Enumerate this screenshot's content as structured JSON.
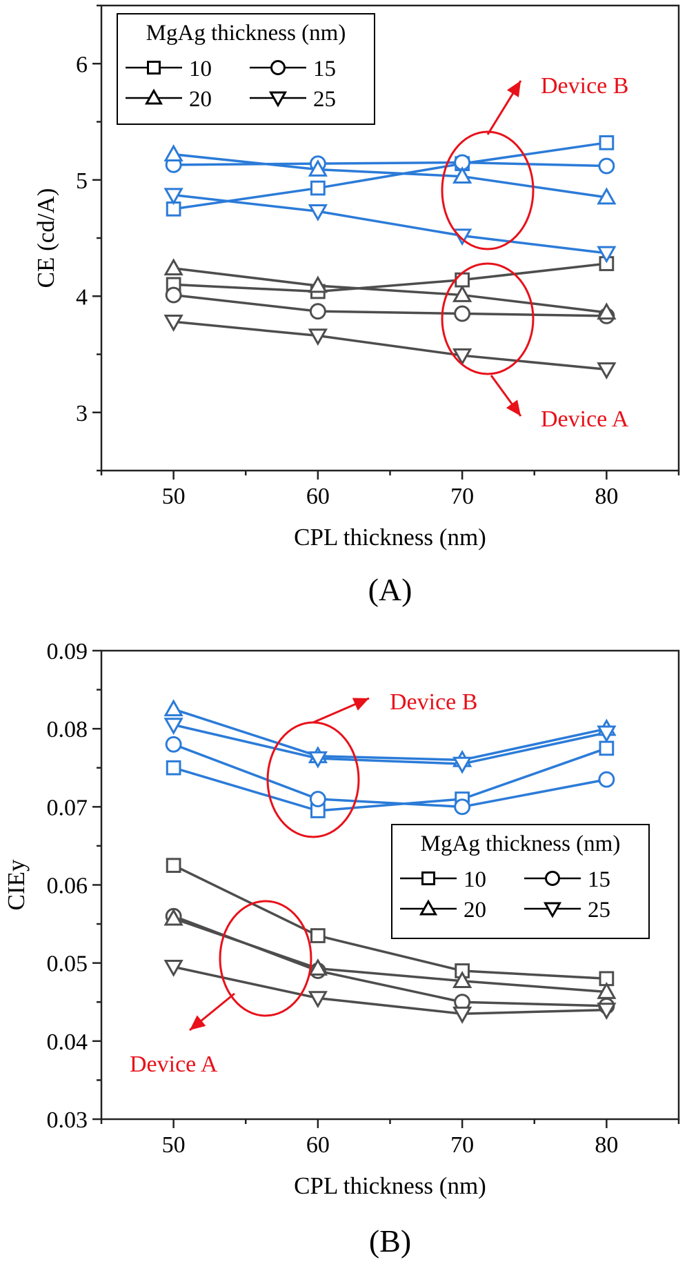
{
  "colors": {
    "device_a": "#4d4d4d",
    "device_b": "#2b7bd8",
    "annotation": "#e8111a",
    "axis": "#222222"
  },
  "legend_title": "MgAg thickness (nm)",
  "panel_labels": [
    "(A)",
    "(B)"
  ],
  "annotations": {
    "device_a": "Device A",
    "device_b": "Device B"
  },
  "chart_data": [
    {
      "type": "line",
      "title": "(A)",
      "xlabel": "CPL thickness (nm)",
      "ylabel": "CE (cd/A)",
      "xlim": [
        45,
        85
      ],
      "ylim": [
        2.5,
        6.5
      ],
      "x_ticks": [
        50,
        60,
        70,
        80
      ],
      "y_ticks": [
        3,
        4,
        5,
        6
      ],
      "legend_position": "top-left",
      "x": [
        50,
        60,
        70,
        80
      ],
      "series": [
        {
          "name": "10",
          "device": "Device A",
          "marker": "square",
          "values": [
            4.1,
            4.04,
            4.14,
            4.28
          ]
        },
        {
          "name": "15",
          "device": "Device A",
          "marker": "circle",
          "values": [
            4.01,
            3.87,
            3.85,
            3.83
          ]
        },
        {
          "name": "20",
          "device": "Device A",
          "marker": "triangle-up",
          "values": [
            4.24,
            4.09,
            4.01,
            3.86
          ]
        },
        {
          "name": "25",
          "device": "Device A",
          "marker": "triangle-down",
          "values": [
            3.78,
            3.66,
            3.49,
            3.37
          ]
        },
        {
          "name": "10",
          "device": "Device B",
          "marker": "square",
          "values": [
            4.75,
            4.93,
            5.14,
            5.32
          ]
        },
        {
          "name": "15",
          "device": "Device B",
          "marker": "circle",
          "values": [
            5.13,
            5.14,
            5.15,
            5.12
          ]
        },
        {
          "name": "20",
          "device": "Device B",
          "marker": "triangle-up",
          "values": [
            5.22,
            5.09,
            5.03,
            4.85
          ]
        },
        {
          "name": "25",
          "device": "Device B",
          "marker": "triangle-down",
          "values": [
            4.87,
            4.73,
            4.52,
            4.37
          ]
        }
      ]
    },
    {
      "type": "line",
      "title": "(B)",
      "xlabel": "CPL thickness (nm)",
      "ylabel": "CIEy",
      "xlim": [
        45,
        85
      ],
      "ylim": [
        0.03,
        0.09
      ],
      "x_ticks": [
        50,
        60,
        70,
        80
      ],
      "y_ticks": [
        "0.03",
        "0.04",
        "0.05",
        "0.06",
        "0.07",
        "0.08",
        "0.09"
      ],
      "legend_position": "center-right",
      "x": [
        50,
        60,
        70,
        80
      ],
      "series": [
        {
          "name": "10",
          "device": "Device A",
          "marker": "square",
          "values": [
            0.0625,
            0.0535,
            0.049,
            0.048
          ]
        },
        {
          "name": "15",
          "device": "Device A",
          "marker": "circle",
          "values": [
            0.056,
            0.049,
            0.045,
            0.0445
          ]
        },
        {
          "name": "20",
          "device": "Device A",
          "marker": "triangle-up",
          "values": [
            0.0557,
            0.0493,
            0.0477,
            0.0463
          ]
        },
        {
          "name": "25",
          "device": "Device A",
          "marker": "triangle-down",
          "values": [
            0.0495,
            0.0455,
            0.0435,
            0.044
          ]
        },
        {
          "name": "10",
          "device": "Device B",
          "marker": "square",
          "values": [
            0.075,
            0.0695,
            0.071,
            0.0775
          ]
        },
        {
          "name": "15",
          "device": "Device B",
          "marker": "circle",
          "values": [
            0.078,
            0.071,
            0.07,
            0.0735
          ]
        },
        {
          "name": "20",
          "device": "Device B",
          "marker": "triangle-up",
          "values": [
            0.0825,
            0.0765,
            0.076,
            0.08
          ]
        },
        {
          "name": "25",
          "device": "Device B",
          "marker": "triangle-down",
          "values": [
            0.0805,
            0.0762,
            0.0755,
            0.0795
          ]
        }
      ]
    }
  ]
}
